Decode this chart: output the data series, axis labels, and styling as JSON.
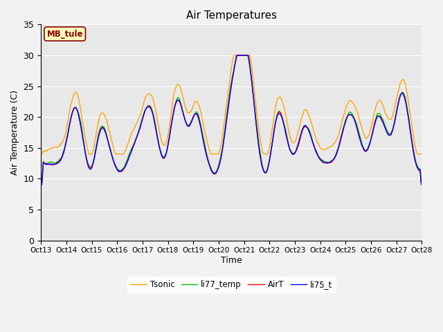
{
  "title": "Air Temperatures",
  "xlabel": "Time",
  "ylabel": "Air Temperature (C)",
  "ylim": [
    0,
    35
  ],
  "yticks": [
    0,
    5,
    10,
    15,
    20,
    25,
    30,
    35
  ],
  "xlim_days": [
    13,
    28
  ],
  "xtick_labels": [
    "Oct 13",
    "Oct 14",
    "Oct 15",
    "Oct 16",
    "Oct 17",
    "Oct 18",
    "Oct 19",
    "Oct 20",
    "Oct 21",
    "Oct 22",
    "Oct 23",
    "Oct 24",
    "Oct 25",
    "Oct 26",
    "Oct 27",
    "Oct 28"
  ],
  "annotation_text": "MB_tule",
  "bg_color": "#e8e8e8",
  "grid_color": "#ffffff",
  "line_colors": {
    "AirT": "#ff0000",
    "li75_t": "#0000ff",
    "li77_temp": "#00bb00",
    "Tsonic": "#ffa500"
  },
  "line_width": 1.0,
  "figsize": [
    6.4,
    4.8
  ],
  "dpi": 100
}
